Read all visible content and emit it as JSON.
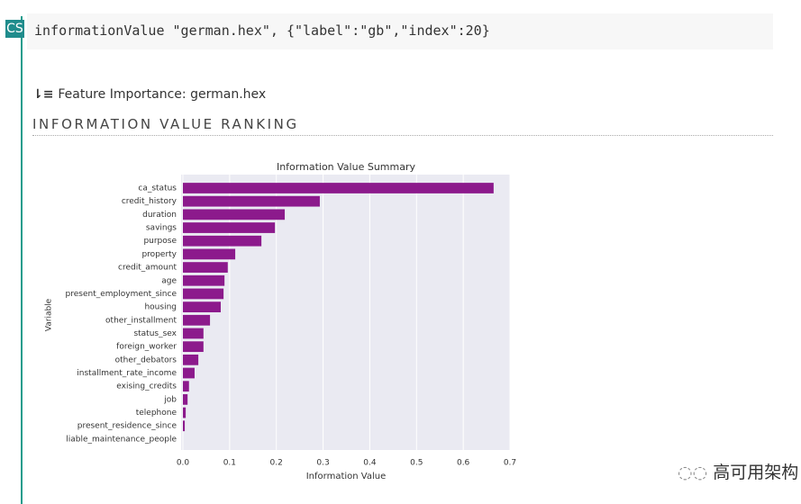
{
  "cell": {
    "prompt": "CS",
    "code": "informationValue \"german.hex\", {\"label\":\"gb\",\"index\":20}"
  },
  "output": {
    "heading": "Feature Importance: german.hex",
    "section_title": "INFORMATION VALUE RANKING"
  },
  "chart_data": {
    "type": "barh",
    "title": "Information Value Summary",
    "x_label": "Information Value",
    "y_label": "Variable",
    "categories": [
      "ca_status",
      "credit_history",
      "duration",
      "savings",
      "purpose",
      "property",
      "credit_amount",
      "age",
      "present_employment_since",
      "housing",
      "other_installment",
      "status_sex",
      "foreign_worker",
      "other_debators",
      "installment_rate_income",
      "exising_credits",
      "job",
      "telephone",
      "present_residence_since",
      "liable_maintenance_people"
    ],
    "values": [
      0.665,
      0.293,
      0.218,
      0.197,
      0.168,
      0.112,
      0.096,
      0.089,
      0.087,
      0.081,
      0.058,
      0.044,
      0.044,
      0.033,
      0.025,
      0.013,
      0.01,
      0.006,
      0.004,
      0.0
    ],
    "color": "#8c1a8c",
    "xlim": [
      0,
      0.7
    ],
    "xticks": [
      {
        "value": 0,
        "label": "0.0"
      },
      0.1,
      0.2,
      0.3,
      0.4,
      0.5,
      0.6,
      0.7
    ],
    "grid": true
  },
  "watermark": "高可用架构"
}
